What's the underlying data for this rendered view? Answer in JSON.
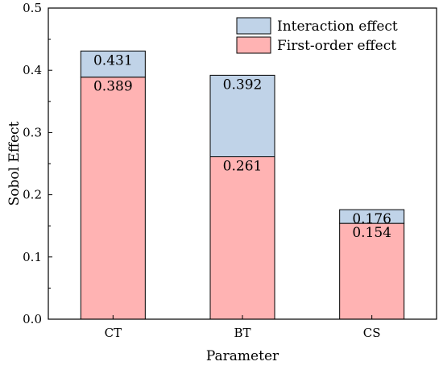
{
  "chart_data": {
    "type": "bar",
    "stacked": true,
    "categories": [
      "CT",
      "BT",
      "CS"
    ],
    "series": [
      {
        "name": "First-order effect",
        "values": [
          0.389,
          0.261,
          0.154
        ],
        "color": "#ffb3b3"
      },
      {
        "name": "Interaction effect",
        "values": [
          0.042,
          0.131,
          0.022
        ],
        "color": "#c0d3e8"
      }
    ],
    "totals": [
      0.431,
      0.392,
      0.176
    ],
    "data_labels": {
      "first_order": [
        "0.389",
        "0.261",
        "0.154"
      ],
      "total": [
        "0.431",
        "0.392",
        "0.176"
      ]
    },
    "xlabel": "Parameter",
    "ylabel": "Sobol Effect",
    "ylim": [
      0,
      0.5
    ],
    "yticks": [
      "0.0",
      "0.1",
      "0.2",
      "0.3",
      "0.4",
      "0.5"
    ],
    "grid": false,
    "legend": {
      "position": "top-right",
      "entries": [
        "Interaction effect",
        "First-order effect"
      ]
    }
  }
}
